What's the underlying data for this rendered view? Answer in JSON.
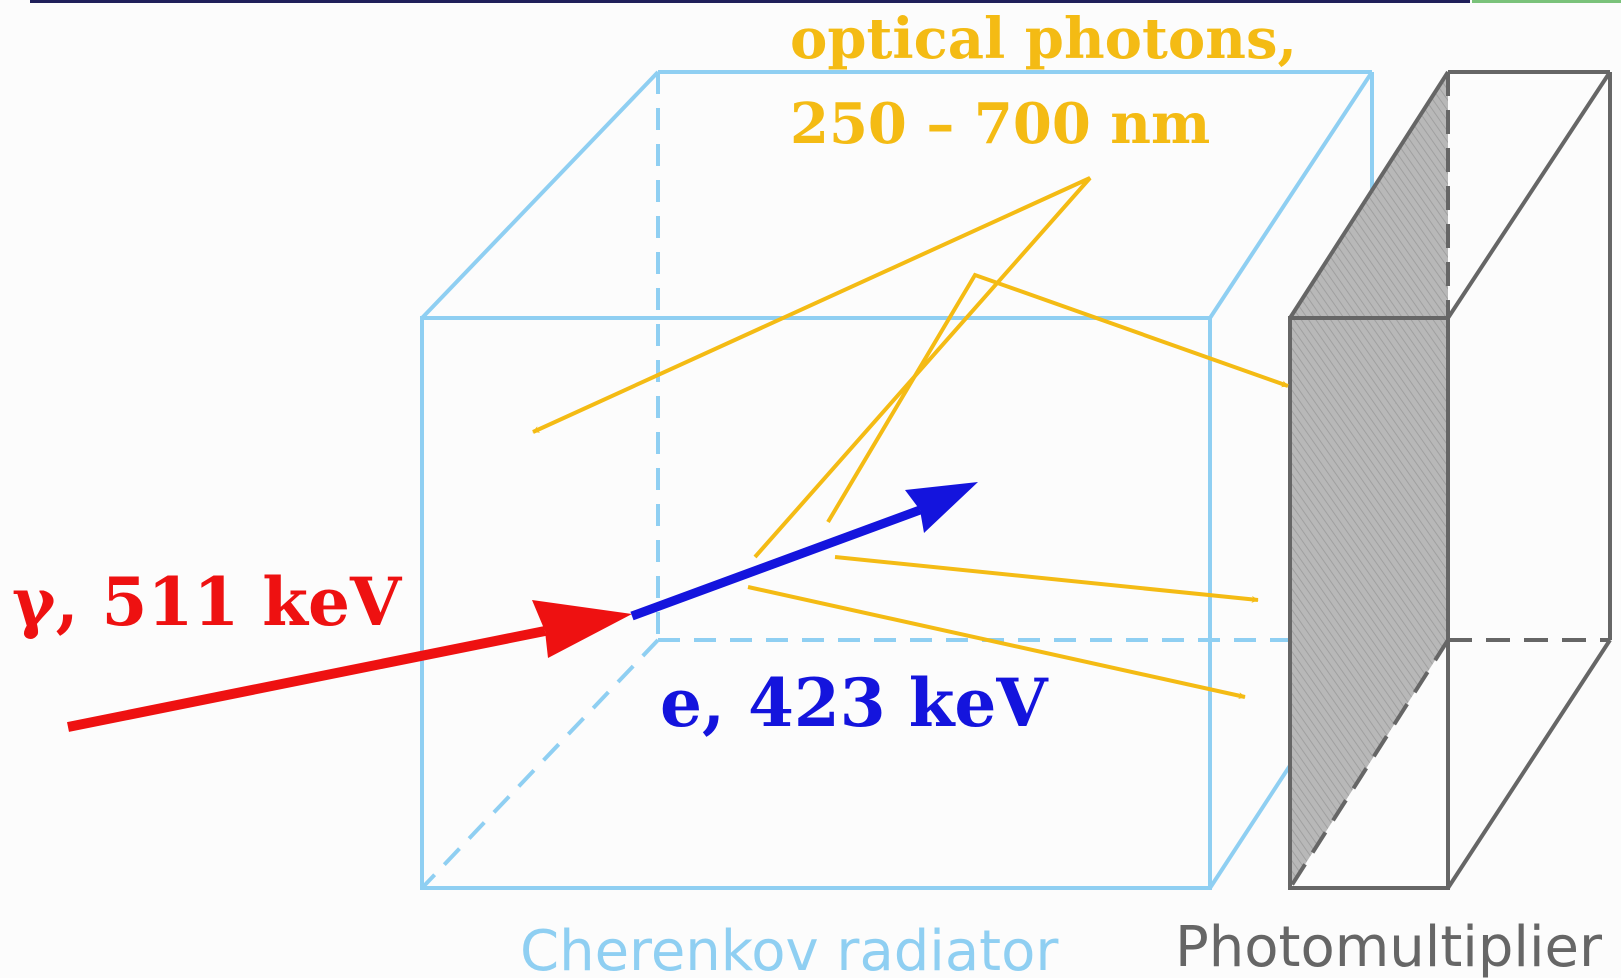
{
  "labels": {
    "photons_line1": "optical photons,",
    "photons_line2": "250 – 700 nm",
    "gamma": "γ, 511 keV",
    "electron": "e, 423 keV",
    "radiator": "Cherenkov radiator",
    "detector": "Photomultiplier"
  },
  "colors": {
    "radiator_box": "#8fcff2",
    "photon": "#f4bb14",
    "gamma": "#ee1111",
    "electron": "#1414dd",
    "detector_frame": "#666666",
    "detector_face": "#b4b4b4",
    "background": "#fcfcfc"
  }
}
